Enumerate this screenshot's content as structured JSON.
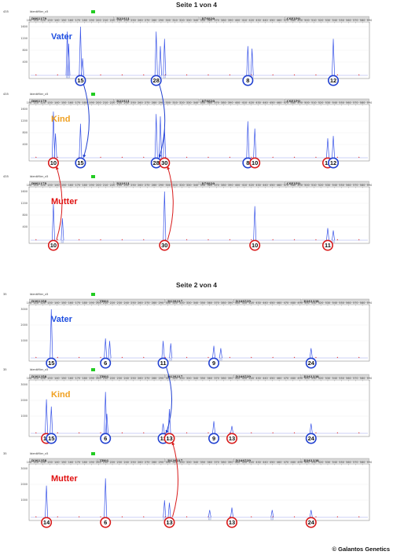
{
  "pages": [
    {
      "title": "Seite 1 von 4",
      "panels": [
        {
          "role": "Vater",
          "role_color": "#1f4fe0",
          "header_num": "435",
          "sample": "Identifiler_v5",
          "loci": [
            "D8S1179",
            "D21S11",
            "D7S820",
            "CSF1PO"
          ],
          "y_ticks": [
            "1600",
            "1200",
            "800",
            "400"
          ],
          "peaks": [
            {
              "x": 155,
              "h": 0.9
            },
            {
              "x": 157,
              "h": 0.65
            },
            {
              "x": 174,
              "h": 1.0
            },
            {
              "x": 177,
              "h": 0.35
            },
            {
              "x": 283,
              "h": 0.9
            },
            {
              "x": 289,
              "h": 0.6
            },
            {
              "x": 295,
              "h": 0.75
            },
            {
              "x": 415,
              "h": 0.6
            },
            {
              "x": 421,
              "h": 0.55
            },
            {
              "x": 538,
              "h": 0.75
            }
          ],
          "alleles": [
            {
              "label": "15",
              "x": 174,
              "color": "#1f3fd0"
            },
            {
              "label": "28",
              "x": 283,
              "color": "#1f3fd0"
            },
            {
              "label": "8",
              "x": 415,
              "color": "#1f3fd0"
            },
            {
              "label": "12",
              "x": 538,
              "color": "#1f3fd0"
            }
          ]
        },
        {
          "role": "Kind",
          "role_color": "#f0a020",
          "header_num": "435",
          "sample": "Identifiler_v5",
          "loci": [
            "D8S1179",
            "D21S11",
            "D7S820",
            "CSF1PO"
          ],
          "y_ticks": [
            "1600",
            "1200",
            "800",
            "400"
          ],
          "peaks": [
            {
              "x": 135,
              "h": 0.95
            },
            {
              "x": 138,
              "h": 0.5
            },
            {
              "x": 174,
              "h": 0.7
            },
            {
              "x": 283,
              "h": 0.9
            },
            {
              "x": 289,
              "h": 0.85
            },
            {
              "x": 295,
              "h": 0.6
            },
            {
              "x": 415,
              "h": 0.75
            },
            {
              "x": 425,
              "h": 0.6
            },
            {
              "x": 530,
              "h": 0.4
            },
            {
              "x": 538,
              "h": 0.45
            }
          ],
          "alleles": [
            {
              "label": "10",
              "x": 135,
              "color": "#d81b1b"
            },
            {
              "label": "15",
              "x": 174,
              "color": "#1f3fd0"
            },
            {
              "label": "28",
              "x": 283,
              "color": "#1f3fd0"
            },
            {
              "label": "30",
              "x": 295,
              "color": "#d81b1b"
            },
            {
              "label": "8",
              "x": 415,
              "color": "#1f3fd0"
            },
            {
              "label": "10",
              "x": 425,
              "color": "#d81b1b"
            },
            {
              "label": "11",
              "x": 530,
              "color": "#d81b1b"
            },
            {
              "label": "12",
              "x": 538,
              "color": "#1f3fd0"
            }
          ]
        },
        {
          "role": "Mutter",
          "role_color": "#e01010",
          "header_num": "435",
          "sample": "Identifiler_v5",
          "loci": [
            "D8S1179",
            "D21S11",
            "D7S820",
            "CSF1PO"
          ],
          "y_ticks": [
            "1600",
            "1200",
            "800",
            "400"
          ],
          "peaks": [
            {
              "x": 135,
              "h": 0.75
            },
            {
              "x": 148,
              "h": 0.45
            },
            {
              "x": 295,
              "h": 1.0
            },
            {
              "x": 425,
              "h": 0.7
            },
            {
              "x": 530,
              "h": 0.25
            },
            {
              "x": 538,
              "h": 0.2
            }
          ],
          "alleles": [
            {
              "label": "10",
              "x": 135,
              "color": "#d81b1b"
            },
            {
              "label": "30",
              "x": 295,
              "color": "#d81b1b"
            },
            {
              "label": "10",
              "x": 425,
              "color": "#d81b1b"
            },
            {
              "label": "11",
              "x": 530,
              "color": "#d81b1b"
            }
          ]
        }
      ],
      "arrows": [
        {
          "from_panel": 0,
          "from": 174,
          "to_panel": 1,
          "to": 174,
          "color": "#1f3fd0"
        },
        {
          "from_panel": 0,
          "from": 283,
          "to_panel": 1,
          "to": 283,
          "color": "#1f3fd0"
        },
        {
          "from_panel": 2,
          "from": 135,
          "to_panel": 1,
          "to": 135,
          "color": "#d81b1b"
        },
        {
          "from_panel": 2,
          "from": 295,
          "to_panel": 1,
          "to": 295,
          "color": "#d81b1b"
        }
      ]
    },
    {
      "title": "Seite 2 von 4",
      "panels": [
        {
          "role": "Vater",
          "role_color": "#1f4fe0",
          "header_num": "35",
          "sample": "Identifiler_v5",
          "loci": [
            "D3S1358",
            "TH01",
            "D13S317",
            "D16S539",
            "D2S1338"
          ],
          "y_ticks": [
            "3000",
            "2000",
            "1000"
          ],
          "peaks": [
            {
              "x": 132,
              "h": 1.0
            },
            {
              "x": 210,
              "h": 0.4
            },
            {
              "x": 216,
              "h": 0.35
            },
            {
              "x": 293,
              "h": 0.35
            },
            {
              "x": 304,
              "h": 0.3
            },
            {
              "x": 366,
              "h": 0.25
            },
            {
              "x": 376,
              "h": 0.2
            },
            {
              "x": 506,
              "h": 0.2
            }
          ],
          "alleles": [
            {
              "label": "15",
              "x": 132,
              "color": "#1f3fd0"
            },
            {
              "label": "6",
              "x": 210,
              "color": "#1f3fd0"
            },
            {
              "label": "11",
              "x": 293,
              "color": "#1f3fd0"
            },
            {
              "label": "9",
              "x": 366,
              "color": "#1f3fd0"
            },
            {
              "label": "24",
              "x": 506,
              "color": "#1f3fd0"
            }
          ]
        },
        {
          "role": "Kind",
          "role_color": "#f0a020",
          "header_num": "35",
          "sample": "Identifiler_v5",
          "loci": [
            "D3S1358",
            "TH01",
            "D13S317",
            "D16S539",
            "D2S1338"
          ],
          "y_ticks": [
            "3000",
            "2000",
            "1000"
          ],
          "peaks": [
            {
              "x": 125,
              "h": 0.7
            },
            {
              "x": 132,
              "h": 0.55
            },
            {
              "x": 210,
              "h": 0.85
            },
            {
              "x": 212,
              "h": 0.4
            },
            {
              "x": 293,
              "h": 0.2
            },
            {
              "x": 302,
              "h": 0.5
            },
            {
              "x": 366,
              "h": 0.25
            },
            {
              "x": 392,
              "h": 0.15
            },
            {
              "x": 506,
              "h": 0.2
            }
          ],
          "alleles": [
            {
              "label": "14",
              "x": 125,
              "color": "#d81b1b"
            },
            {
              "label": "15",
              "x": 132,
              "color": "#1f3fd0"
            },
            {
              "label": "6",
              "x": 210,
              "color": "#1f3fd0"
            },
            {
              "label": "11",
              "x": 293,
              "color": "#1f3fd0"
            },
            {
              "label": "13",
              "x": 302,
              "color": "#d81b1b"
            },
            {
              "label": "9",
              "x": 366,
              "color": "#1f3fd0"
            },
            {
              "label": "13",
              "x": 392,
              "color": "#d81b1b"
            },
            {
              "label": "24",
              "x": 506,
              "color": "#1f3fd0"
            }
          ]
        },
        {
          "role": "Mutter",
          "role_color": "#e01010",
          "header_num": "35",
          "sample": "Identifiler_v5",
          "loci": [
            "D3S1358",
            "TH01",
            "D13S317",
            "D16S539",
            "D2S1338"
          ],
          "y_ticks": [
            "3000",
            "2000",
            "1000"
          ],
          "peaks": [
            {
              "x": 125,
              "h": 0.65
            },
            {
              "x": 210,
              "h": 0.8
            },
            {
              "x": 295,
              "h": 0.35
            },
            {
              "x": 302,
              "h": 0.3
            },
            {
              "x": 360,
              "h": 0.15
            },
            {
              "x": 392,
              "h": 0.2
            },
            {
              "x": 450,
              "h": 0.15
            },
            {
              "x": 506,
              "h": 0.15
            }
          ],
          "alleles": [
            {
              "label": "14",
              "x": 125,
              "color": "#d81b1b"
            },
            {
              "label": "6",
              "x": 210,
              "color": "#d81b1b"
            },
            {
              "label": "13",
              "x": 302,
              "color": "#d81b1b"
            },
            {
              "label": "13",
              "x": 392,
              "color": "#d81b1b"
            },
            {
              "label": "24",
              "x": 506,
              "color": "#d81b1b"
            }
          ]
        }
      ],
      "arrows": [
        {
          "from_panel": 0,
          "from": 293,
          "to_panel": 1,
          "to": 293,
          "color": "#1f3fd0"
        },
        {
          "from_panel": 2,
          "from": 302,
          "to_panel": 1,
          "to": 302,
          "color": "#d81b1b"
        }
      ]
    }
  ],
  "chart_data": {
    "type": "line",
    "title": "",
    "xlabel": "",
    "ylabel": "",
    "series": [
      {
        "name": "Vater",
        "page": "Seite 1 von 4",
        "alleles": [
          "15",
          "28",
          "8",
          "12"
        ]
      },
      {
        "name": "Kind",
        "page": "Seite 1 von 4",
        "alleles": [
          "10",
          "15",
          "28",
          "30",
          "8",
          "10",
          "11",
          "12"
        ]
      },
      {
        "name": "Mutter",
        "page": "Seite 1 von 4",
        "alleles": [
          "10",
          "30",
          "10",
          "11"
        ]
      },
      {
        "name": "Vater",
        "page": "Seite 2 von 4",
        "alleles": [
          "15",
          "6",
          "11",
          "9",
          "24"
        ]
      },
      {
        "name": "Kind",
        "page": "Seite 2 von 4",
        "alleles": [
          "14",
          "15",
          "6",
          "11",
          "13",
          "9",
          "13",
          "24"
        ]
      },
      {
        "name": "Mutter",
        "page": "Seite 2 von 4",
        "alleles": [
          "14",
          "6",
          "13",
          "13",
          "24"
        ]
      }
    ]
  },
  "copyright": "© Galantos Genetics",
  "colors": {
    "trace": "#3a55e8",
    "father": "#1f3fd0",
    "mother": "#d81b1b",
    "child": "#f0a020"
  }
}
